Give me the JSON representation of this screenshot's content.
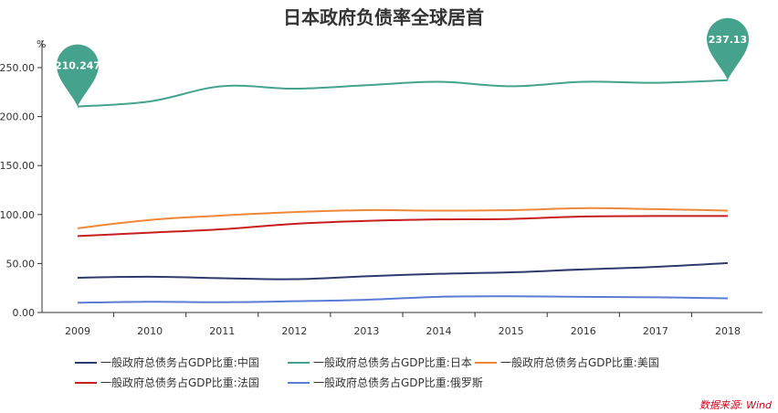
{
  "chart_data": {
    "type": "line",
    "title": "日本政府负债率全球居首",
    "ylabel": "%",
    "ylim": [
      0,
      250
    ],
    "yticks": [
      "0.00",
      "50.00",
      "100.00",
      "150.00",
      "200.00",
      "250.00"
    ],
    "categories": [
      "2009",
      "2010",
      "2011",
      "2012",
      "2013",
      "2014",
      "2015",
      "2016",
      "2017",
      "2018"
    ],
    "series": [
      {
        "name": "一般政府总债务占GDP比重:中国",
        "color": "#2f3a6e",
        "values": [
          35.5,
          36.5,
          35.0,
          34.0,
          37.0,
          39.5,
          41.0,
          44.0,
          46.5,
          50.5
        ]
      },
      {
        "name": "一般政府总债务占GDP比重:日本",
        "color": "#45a28d",
        "values": [
          210.247,
          215.5,
          231.0,
          228.5,
          232.0,
          235.5,
          231.0,
          235.5,
          234.5,
          237.13
        ]
      },
      {
        "name": "一般政府总债务占GDP比重:美国",
        "color": "#f0883a",
        "values": [
          86.0,
          94.5,
          99.0,
          102.5,
          104.5,
          104.0,
          104.5,
          106.5,
          105.5,
          104.0
        ]
      },
      {
        "name": "一般政府总债务占GDP比重:法国",
        "color": "#c81e1e",
        "values": [
          78.0,
          81.5,
          85.0,
          90.5,
          93.5,
          95.0,
          95.5,
          98.0,
          98.5,
          98.5
        ]
      },
      {
        "name": "一般政府总债务占GDP比重:俄罗斯",
        "color": "#5b7bd5",
        "values": [
          10.0,
          11.0,
          10.5,
          11.5,
          13.0,
          16.0,
          16.5,
          16.0,
          15.5,
          14.5
        ]
      }
    ],
    "annotations": [
      {
        "series": 1,
        "index": 0,
        "label": "210.247"
      },
      {
        "series": 1,
        "index": 9,
        "label": "237.13"
      }
    ],
    "legend_position": "bottom",
    "grid": false
  },
  "source_note": "数据来源: Wind"
}
